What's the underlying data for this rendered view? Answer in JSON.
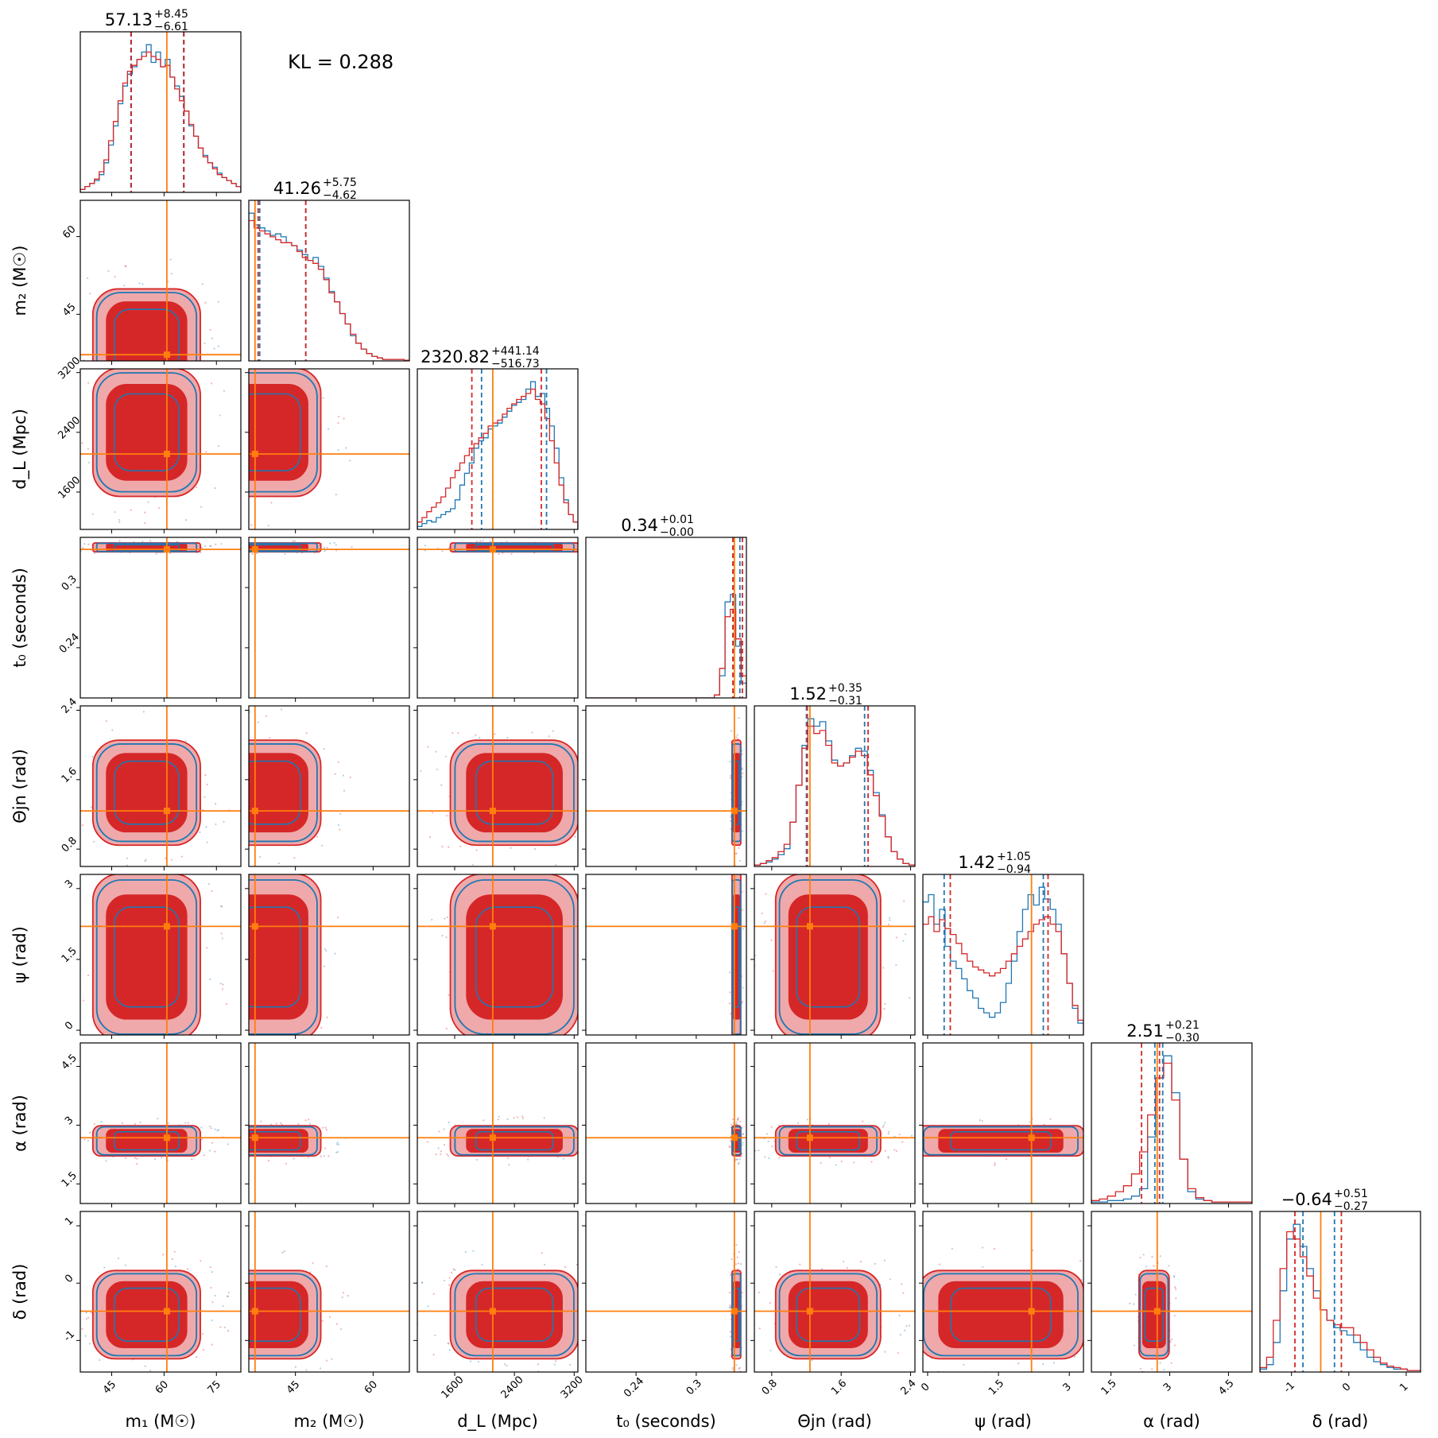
{
  "figure": {
    "kl_label": "KL = 0.288",
    "colors": {
      "blue": "#1f77b4",
      "red": "#d62728",
      "red_fill_light": "#efa9aa",
      "truth": "#ff7f0e"
    }
  },
  "chart_data": {
    "type": "corner",
    "params": [
      {
        "key": "m1",
        "label": "m₁ (M☉)",
        "title_value": "57.13",
        "title_plus": "+8.45",
        "title_minus": "−6.61",
        "range": [
          36,
          82
        ],
        "ticks": [
          45,
          60,
          75
        ],
        "truth": 60.8,
        "q_blue": [
          50.5,
          65.6
        ],
        "q_red": [
          50.6,
          65.7
        ]
      },
      {
        "key": "m2",
        "label": "m₂ (M☉)",
        "title_value": "41.26",
        "title_plus": "+5.75",
        "title_minus": "−4.62",
        "range": [
          36,
          67
        ],
        "ticks": [
          45,
          60
        ],
        "truth": 37.2,
        "q_blue": [
          38.1,
          47.0
        ],
        "q_red": [
          37.8,
          47.0
        ],
        "truth_left": 36.6
      },
      {
        "key": "dL",
        "label": "d_L (Mpc)",
        "title_value": "2320.82",
        "title_plus": "+441.14",
        "title_minus": "−516.73",
        "range": [
          1100,
          3250
        ],
        "ticks": [
          1600,
          2400,
          3200
        ],
        "truth": 2110,
        "q_blue": [
          1960,
          2830
        ],
        "q_red": [
          1830,
          2760
        ]
      },
      {
        "key": "t0",
        "label": "t₀ (seconds)",
        "title_value": "0.34",
        "title_plus": "+0.01",
        "title_minus": "−0.00",
        "range": [
          0.19,
          0.35
        ],
        "ticks": [
          0.24,
          0.3
        ],
        "truth": 0.338,
        "q_blue": [
          0.3375,
          0.3435
        ],
        "q_red": [
          0.3365,
          0.346
        ]
      },
      {
        "key": "theta_jn",
        "label": "Θjn (rad)",
        "title_value": "1.52",
        "title_plus": "+0.35",
        "title_minus": "−0.31",
        "range": [
          0.6,
          2.45
        ],
        "ticks": [
          0.8,
          1.6,
          2.4
        ],
        "truth": 1.24,
        "q_blue": [
          1.2,
          1.87
        ],
        "q_red": [
          1.21,
          1.91
        ]
      },
      {
        "key": "psi",
        "label": "ψ (rad)",
        "title_value": "1.42",
        "title_plus": "+1.05",
        "title_minus": "−0.94",
        "range": [
          -0.1,
          3.3
        ],
        "ticks": [
          0.0,
          1.5,
          3.0
        ],
        "truth": 2.2,
        "q_blue": [
          0.35,
          2.45
        ],
        "q_red": [
          0.48,
          2.55
        ]
      },
      {
        "key": "alpha",
        "label": "α (rad)",
        "title_value": "2.51",
        "title_plus": "+0.21",
        "title_minus": "−0.30",
        "range": [
          1.0,
          5.1
        ],
        "ticks": [
          1.5,
          3.0,
          4.5
        ],
        "truth": 2.68,
        "q_blue": [
          2.62,
          2.82
        ],
        "q_red": [
          2.28,
          2.74
        ]
      },
      {
        "key": "delta",
        "label": "δ (rad)",
        "title_value": "−0.64",
        "title_plus": "+0.51",
        "title_minus": "−0.27",
        "range": [
          -1.55,
          1.25
        ],
        "ticks": [
          -1,
          0,
          1
        ],
        "truth": -0.49,
        "q_blue": [
          -0.8,
          -0.25
        ],
        "q_red": [
          -0.94,
          -0.13
        ]
      }
    ],
    "hist_blue": [
      [
        0.02,
        0.04,
        0.06,
        0.08,
        0.12,
        0.2,
        0.32,
        0.45,
        0.6,
        0.72,
        0.8,
        0.85,
        0.9,
        0.95,
        1.0,
        0.88,
        0.95,
        0.85,
        0.9,
        0.78,
        0.72,
        0.65,
        0.55,
        0.45,
        0.38,
        0.3,
        0.25,
        0.2,
        0.17,
        0.13,
        0.1,
        0.08,
        0.06,
        0.04
      ],
      [
        1.0,
        0.92,
        0.9,
        0.88,
        0.85,
        0.86,
        0.84,
        0.8,
        0.78,
        0.75,
        0.72,
        0.68,
        0.7,
        0.64,
        0.56,
        0.47,
        0.4,
        0.32,
        0.25,
        0.17,
        0.12,
        0.08,
        0.05,
        0.03,
        0.02,
        0.01,
        0.01,
        0.01,
        0.01,
        0.005
      ],
      [
        0.02,
        0.04,
        0.06,
        0.05,
        0.08,
        0.1,
        0.12,
        0.14,
        0.2,
        0.3,
        0.38,
        0.45,
        0.55,
        0.6,
        0.62,
        0.68,
        0.7,
        0.72,
        0.76,
        0.8,
        0.84,
        0.86,
        0.88,
        0.95,
        1.0,
        0.9,
        0.92,
        0.82,
        0.7,
        0.55,
        0.35,
        0.2,
        0.1,
        0.05
      ],
      [
        0,
        0,
        0,
        0,
        0,
        0,
        0,
        0,
        0,
        0,
        0,
        0,
        0,
        0,
        0,
        0,
        0,
        0,
        0,
        0,
        0,
        0,
        0,
        0,
        0.02,
        0.15,
        0.65,
        0.7,
        0.35,
        0.1
      ],
      [
        0.01,
        0.02,
        0.03,
        0.05,
        0.08,
        0.12,
        0.3,
        0.55,
        0.82,
        1.0,
        0.95,
        0.98,
        0.85,
        0.72,
        0.68,
        0.7,
        0.75,
        0.8,
        0.78,
        0.65,
        0.5,
        0.35,
        0.2,
        0.1,
        0.05,
        0.02,
        0.01
      ],
      [
        0.9,
        0.95,
        0.75,
        0.85,
        0.6,
        0.5,
        0.45,
        0.38,
        0.3,
        0.25,
        0.18,
        0.15,
        0.12,
        0.15,
        0.22,
        0.35,
        0.5,
        0.7,
        0.85,
        0.95,
        0.88,
        1.0,
        0.92,
        0.85,
        0.75,
        0.55,
        0.35,
        0.18,
        0.08
      ],
      [
        0.01,
        0.01,
        0.02,
        0.02,
        0.03,
        0.05,
        0.1,
        0.45,
        0.85,
        1.0,
        0.75,
        0.3,
        0.08,
        0.03,
        0.02,
        0.01,
        0.01,
        0.01,
        0.01,
        0.01
      ],
      [
        0.02,
        0.05,
        0.2,
        0.55,
        0.9,
        1.0,
        0.85,
        0.7,
        0.55,
        0.42,
        0.35,
        0.3,
        0.28,
        0.25,
        0.2,
        0.15,
        0.1,
        0.07,
        0.05,
        0.03,
        0.02,
        0.02,
        0.01,
        0.01
      ]
    ],
    "hist_red": [
      [
        0.02,
        0.04,
        0.06,
        0.09,
        0.14,
        0.22,
        0.35,
        0.48,
        0.62,
        0.74,
        0.82,
        0.86,
        0.9,
        0.92,
        0.95,
        0.92,
        0.9,
        0.85,
        0.86,
        0.78,
        0.7,
        0.62,
        0.55,
        0.46,
        0.38,
        0.3,
        0.24,
        0.2,
        0.16,
        0.12,
        0.1,
        0.08,
        0.06,
        0.04
      ],
      [
        0.95,
        0.9,
        0.88,
        0.86,
        0.84,
        0.82,
        0.8,
        0.8,
        0.78,
        0.74,
        0.7,
        0.68,
        0.66,
        0.62,
        0.55,
        0.46,
        0.4,
        0.32,
        0.25,
        0.18,
        0.12,
        0.08,
        0.05,
        0.03,
        0.02,
        0.01,
        0.01,
        0.01,
        0.01,
        0.005
      ],
      [
        0.05,
        0.08,
        0.12,
        0.15,
        0.18,
        0.22,
        0.28,
        0.35,
        0.4,
        0.45,
        0.5,
        0.55,
        0.58,
        0.62,
        0.65,
        0.7,
        0.72,
        0.74,
        0.78,
        0.82,
        0.85,
        0.88,
        0.9,
        0.92,
        0.95,
        0.88,
        0.85,
        0.75,
        0.6,
        0.45,
        0.3,
        0.18,
        0.1,
        0.05
      ],
      [
        0,
        0,
        0,
        0,
        0,
        0,
        0,
        0,
        0,
        0,
        0,
        0,
        0,
        0,
        0,
        0,
        0,
        0,
        0,
        0,
        0,
        0,
        0,
        0,
        0.02,
        0.2,
        0.55,
        0.6,
        0.4,
        0.15
      ],
      [
        0.01,
        0.02,
        0.04,
        0.06,
        0.1,
        0.15,
        0.3,
        0.55,
        0.8,
        0.95,
        0.9,
        0.92,
        0.82,
        0.7,
        0.68,
        0.7,
        0.74,
        0.78,
        0.75,
        0.62,
        0.48,
        0.34,
        0.2,
        0.1,
        0.05,
        0.02,
        0.01
      ],
      [
        0.75,
        0.8,
        0.7,
        0.78,
        0.72,
        0.68,
        0.62,
        0.55,
        0.5,
        0.46,
        0.44,
        0.42,
        0.4,
        0.42,
        0.45,
        0.5,
        0.55,
        0.6,
        0.65,
        0.7,
        0.75,
        0.78,
        0.8,
        0.75,
        0.7,
        0.55,
        0.35,
        0.2,
        0.1
      ],
      [
        0.02,
        0.03,
        0.05,
        0.08,
        0.12,
        0.2,
        0.35,
        0.6,
        0.85,
        0.95,
        0.7,
        0.3,
        0.1,
        0.04,
        0.02,
        0.01,
        0.01,
        0.01,
        0.01,
        0.01
      ],
      [
        0.03,
        0.1,
        0.35,
        0.7,
        0.95,
        0.9,
        0.78,
        0.65,
        0.5,
        0.42,
        0.35,
        0.32,
        0.3,
        0.3,
        0.25,
        0.2,
        0.15,
        0.1,
        0.06,
        0.04,
        0.03,
        0.02,
        0.01,
        0.01
      ]
    ],
    "blob_centers": {
      "m1": 55,
      "m2": 40,
      "dL": 2400,
      "t0": 0.34,
      "theta_jn": 1.45,
      "psi": 1.55,
      "alpha": 2.6,
      "delta": -0.55
    },
    "blob_halfwidths": {
      "m1": 14,
      "m2": 9,
      "dL": 780,
      "t0": 0.004,
      "theta_jn": 0.55,
      "psi": 1.6,
      "alpha": 0.35,
      "delta": 0.7
    }
  }
}
